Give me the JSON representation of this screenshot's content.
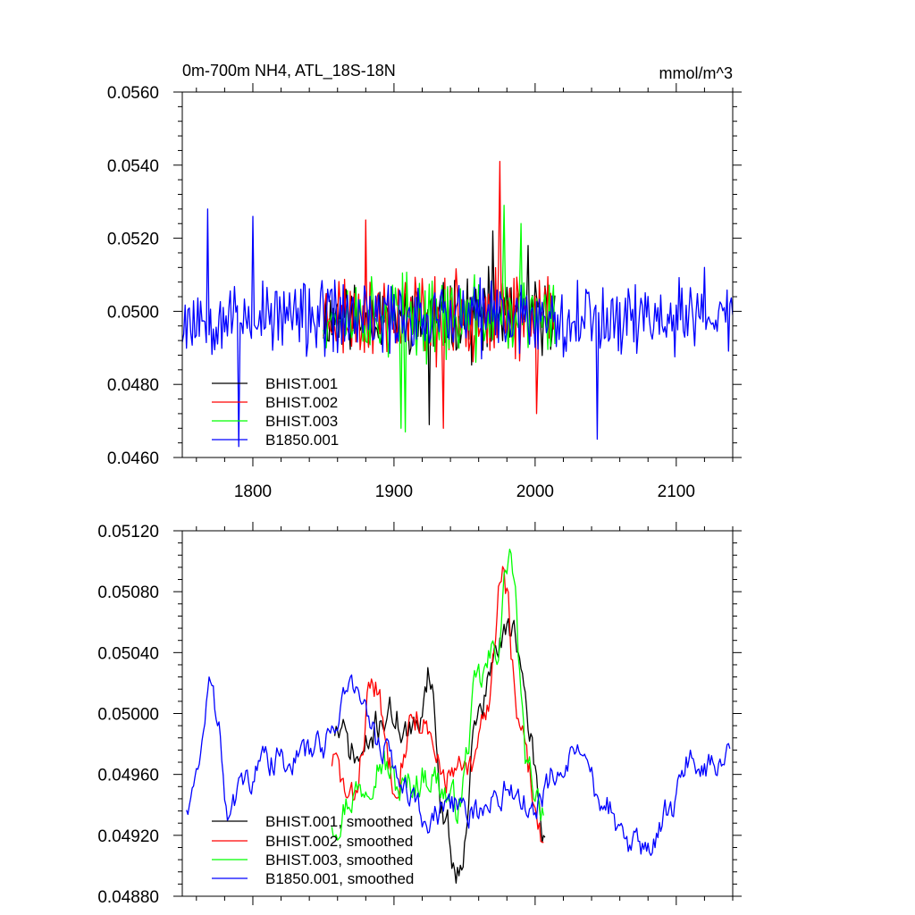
{
  "charts": [
    {
      "type": "line",
      "title": "0m-700m NH4, ATL_18S-18N",
      "units": "mmol/m^3",
      "xlim": [
        1750,
        2140
      ],
      "ylim": [
        0.046,
        0.056
      ],
      "yticks": [
        "0.0460",
        "0.0480",
        "0.0500",
        "0.0520",
        "0.0540",
        "0.0560"
      ],
      "xticks": [
        "1800",
        "1900",
        "2000",
        "2100"
      ],
      "series": [
        {
          "name": "BHIST.001",
          "color": "#000000",
          "start": 1850,
          "end": 2014,
          "base": 0.04985,
          "amp": 0.00085,
          "seed": 11,
          "anchors": [
            [
              1860,
              0.0502
            ],
            [
              1925,
              0.0469
            ],
            [
              1970,
              0.0522
            ],
            [
              1995,
              0.0518
            ]
          ]
        },
        {
          "name": "BHIST.002",
          "color": "#ff0000",
          "start": 1850,
          "end": 2014,
          "base": 0.0499,
          "amp": 0.00095,
          "seed": 23,
          "anchors": [
            [
              1880,
              0.0525
            ],
            [
              1935,
              0.0468
            ],
            [
              1975,
              0.0541
            ],
            [
              2001,
              0.0472
            ]
          ]
        },
        {
          "name": "BHIST.003",
          "color": "#00ff00",
          "start": 1850,
          "end": 2014,
          "base": 0.04985,
          "amp": 0.0009,
          "seed": 37,
          "anchors": [
            [
              1905,
              0.0468
            ],
            [
              1908,
              0.0467
            ],
            [
              1978,
              0.0529
            ],
            [
              1990,
              0.0524
            ]
          ]
        },
        {
          "name": "B1850.001",
          "color": "#0000ff",
          "start": 1750,
          "end": 2140,
          "base": 0.04985,
          "amp": 0.00085,
          "seed": 53,
          "anchors": [
            [
              1768,
              0.0528
            ],
            [
              1790,
              0.0463
            ],
            [
              1800,
              0.0526
            ],
            [
              2044,
              0.0465
            ],
            [
              2120,
              0.0512
            ]
          ]
        }
      ]
    },
    {
      "type": "line",
      "title": "",
      "units": "",
      "xlim": [
        1750,
        2140
      ],
      "ylim": [
        0.0488,
        0.0512
      ],
      "yticks": [
        "0.04880",
        "0.04920",
        "0.04960",
        "0.05000",
        "0.05040",
        "0.05080",
        "0.05120"
      ],
      "xticks": [],
      "series": [
        {
          "name": "BHIST.001, smoothed",
          "color": "#000000",
          "start": 1858,
          "end": 2007,
          "seed": 71,
          "knots": [
            [
              1858,
              0.0499
            ],
            [
              1875,
              0.0497
            ],
            [
              1895,
              0.05
            ],
            [
              1915,
              0.04985
            ],
            [
              1925,
              0.0503
            ],
            [
              1935,
              0.04935
            ],
            [
              1945,
              0.04895
            ],
            [
              1960,
              0.05
            ],
            [
              1975,
              0.05045
            ],
            [
              1985,
              0.0506
            ],
            [
              1995,
              0.0499
            ],
            [
              2007,
              0.0492
            ]
          ],
          "noise": 0.0001
        },
        {
          "name": "BHIST.002, smoothed",
          "color": "#ff0000",
          "start": 1856,
          "end": 2006,
          "seed": 83,
          "knots": [
            [
              1856,
              0.0497
            ],
            [
              1870,
              0.0494
            ],
            [
              1885,
              0.0502
            ],
            [
              1900,
              0.0496
            ],
            [
              1915,
              0.05
            ],
            [
              1935,
              0.0496
            ],
            [
              1955,
              0.0496
            ],
            [
              1965,
              0.05
            ],
            [
              1977,
              0.05095
            ],
            [
              1990,
              0.0498
            ],
            [
              2006,
              0.0492
            ]
          ],
          "noise": 0.0001
        },
        {
          "name": "BHIST.003, smoothed",
          "color": "#00ff00",
          "start": 1856,
          "end": 2006,
          "seed": 97,
          "knots": [
            [
              1856,
              0.0493
            ],
            [
              1875,
              0.0495
            ],
            [
              1890,
              0.0497
            ],
            [
              1905,
              0.0495
            ],
            [
              1925,
              0.0496
            ],
            [
              1945,
              0.0494
            ],
            [
              1960,
              0.0502
            ],
            [
              1972,
              0.0504
            ],
            [
              1982,
              0.05105
            ],
            [
              1995,
              0.0496
            ],
            [
              2006,
              0.0494
            ]
          ],
          "noise": 0.0001
        },
        {
          "name": "B1850.001, smoothed",
          "color": "#0000ff",
          "start": 1753,
          "end": 2138,
          "seed": 131,
          "knots": [
            [
              1753,
              0.0494
            ],
            [
              1758,
              0.0495
            ],
            [
              1765,
              0.0499
            ],
            [
              1770,
              0.0502
            ],
            [
              1775,
              0.05
            ],
            [
              1782,
              0.0494
            ],
            [
              1795,
              0.04955
            ],
            [
              1810,
              0.0497
            ],
            [
              1830,
              0.0497
            ],
            [
              1850,
              0.0498
            ],
            [
              1870,
              0.0502
            ],
            [
              1890,
              0.0498
            ],
            [
              1910,
              0.0495
            ],
            [
              1925,
              0.0493
            ],
            [
              1940,
              0.0494
            ],
            [
              1960,
              0.04935
            ],
            [
              1980,
              0.0495
            ],
            [
              2000,
              0.0494
            ],
            [
              2015,
              0.0496
            ],
            [
              2030,
              0.0497
            ],
            [
              2050,
              0.0494
            ],
            [
              2065,
              0.04915
            ],
            [
              2080,
              0.0491
            ],
            [
              2095,
              0.04935
            ],
            [
              2110,
              0.0497
            ],
            [
              2125,
              0.04965
            ],
            [
              2138,
              0.0497
            ]
          ],
          "noise": 8e-05
        }
      ]
    }
  ]
}
